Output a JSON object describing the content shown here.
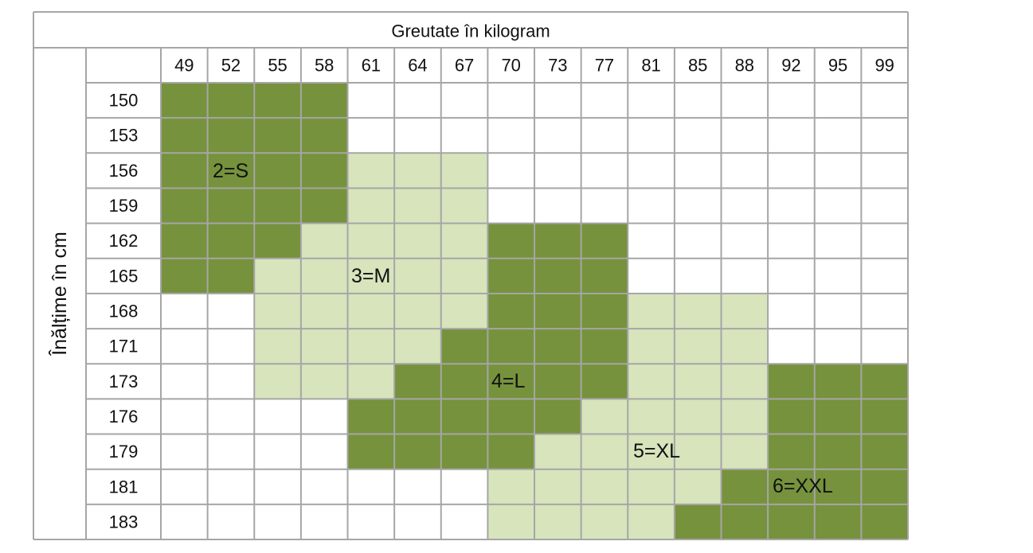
{
  "table": {
    "title": "Greutate în kilogram",
    "row_header": "Înălțime în cm",
    "weights": [
      "49",
      "52",
      "55",
      "58",
      "61",
      "64",
      "67",
      "70",
      "73",
      "77",
      "81",
      "85",
      "88",
      "92",
      "95",
      "99"
    ],
    "palette": {
      "D": "#76923c",
      "L": "#d7e4bc",
      "W": "#ffffff"
    },
    "rows": [
      {
        "height": "150",
        "fills": "DDDDWWWWWWWWWWWW"
      },
      {
        "height": "153",
        "fills": "DDDDWWWWWWWWWWWW"
      },
      {
        "height": "156",
        "fills": "DDDDLLLWWWWWWWWW"
      },
      {
        "height": "159",
        "fills": "DDDDLLLWWWWWWWWW"
      },
      {
        "height": "162",
        "fills": "DDDLLLLDDDWWWWWW"
      },
      {
        "height": "165",
        "fills": "DDLLLLLDDDWWWWWW"
      },
      {
        "height": "168",
        "fills": "WWLLLLLDDDLLLWWW"
      },
      {
        "height": "171",
        "fills": "WWLLLLDDDDLLLWWW"
      },
      {
        "height": "173",
        "fills": "WWLLLDDDDDLLLDDD"
      },
      {
        "height": "176",
        "fills": "WWWWDDDDDLLLLDDD"
      },
      {
        "height": "179",
        "fills": "WWWWDDDDLLLLLDDD"
      },
      {
        "height": "181",
        "fills": "WWWWWWWLLLLLDDDD"
      },
      {
        "height": "183",
        "fills": "WWWWWWWLLLLDDDDD"
      }
    ],
    "size_labels": [
      "2=S",
      "3=M",
      "4=L",
      "5=XL",
      "6=XXL"
    ]
  }
}
